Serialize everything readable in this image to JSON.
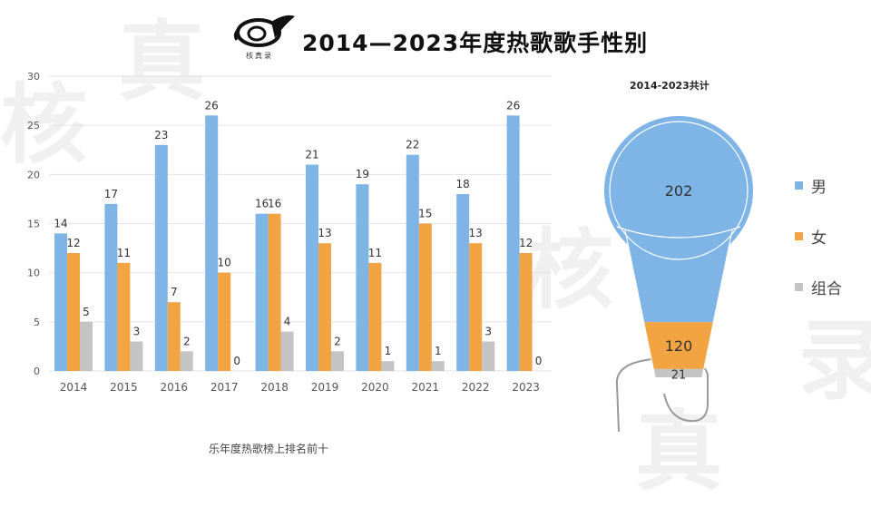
{
  "header": {
    "title": "2014—2023年度热歌歌手性别",
    "logo_text": "核真录"
  },
  "footnote": "乐年度热歌榜上排名前十",
  "colors": {
    "male": "#7eb4e6",
    "female": "#f2a443",
    "group": "#c4c4c4",
    "grid": "#e4e4e4",
    "axis_text": "#555555"
  },
  "chart_data": [
    {
      "type": "bar",
      "title": "",
      "xlabel": "",
      "ylabel": "",
      "ylim": [
        0,
        30
      ],
      "yticks": [
        0,
        5,
        10,
        15,
        20,
        25,
        30
      ],
      "grid": true,
      "categories": [
        "2014",
        "2015",
        "2016",
        "2017",
        "2018",
        "2019",
        "2020",
        "2021",
        "2022",
        "2023"
      ],
      "series": [
        {
          "name": "男",
          "values": [
            14,
            17,
            23,
            26,
            16,
            21,
            19,
            22,
            18,
            26
          ]
        },
        {
          "name": "女",
          "values": [
            12,
            11,
            7,
            10,
            16,
            13,
            11,
            15,
            13,
            12
          ]
        },
        {
          "name": "组合",
          "values": [
            5,
            3,
            2,
            0,
            4,
            2,
            1,
            1,
            3,
            0
          ]
        }
      ]
    },
    {
      "type": "pie",
      "title": "2014-2023共计",
      "labels": [
        "男",
        "女",
        "组合"
      ],
      "values": [
        202,
        120,
        21
      ],
      "legend": "right"
    }
  ]
}
